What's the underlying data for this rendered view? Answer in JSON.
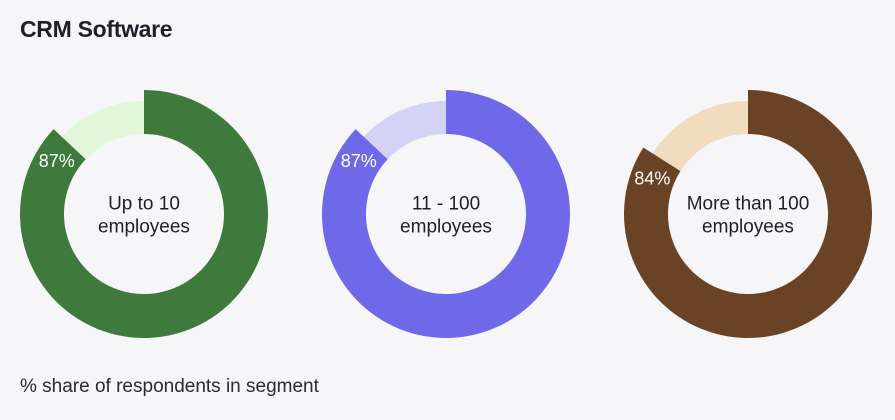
{
  "title": "CRM Software",
  "footer": "% share of respondents in segment",
  "chart_data": [
    {
      "type": "pie",
      "segment": "Up to 10 employees",
      "center_lines": [
        "Up to 10",
        "employees"
      ],
      "value": 87,
      "value_label": "87%",
      "colors": {
        "main": "#3f7a3d",
        "rest": "#e2f7d9"
      }
    },
    {
      "type": "pie",
      "segment": "11 - 100 employees",
      "center_lines": [
        "11 - 100",
        "employees"
      ],
      "value": 87,
      "value_label": "87%",
      "colors": {
        "main": "#6f69ea",
        "rest": "#d4d3f6"
      }
    },
    {
      "type": "pie",
      "segment": "More than 100 employees",
      "center_lines": [
        "More than 100",
        "employees"
      ],
      "value": 84,
      "value_label": "84%",
      "colors": {
        "main": "#6a4326",
        "rest": "#f1dcbf"
      }
    }
  ]
}
